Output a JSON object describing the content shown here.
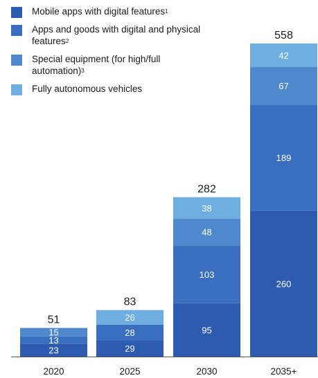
{
  "chart_data": {
    "type": "bar",
    "stacked": true,
    "categories": [
      "2020",
      "2025",
      "2030",
      "2035+"
    ],
    "totals": [
      51,
      83,
      282,
      558
    ],
    "series": [
      {
        "name": "Mobile apps with digital features",
        "note": "1",
        "color": "#2c5bb0",
        "values": [
          23,
          29,
          95,
          260
        ]
      },
      {
        "name": "Apps and goods with digital and physical features",
        "note": "2",
        "color": "#3a6fc0",
        "values": [
          13,
          28,
          103,
          189
        ]
      },
      {
        "name": "Special equipment (for high/full automation)",
        "note": "3",
        "color": "#4f89cc",
        "values": [
          15,
          0,
          48,
          67
        ]
      },
      {
        "name": "Fully autonomous vehicles",
        "color": "#6eaee0",
        "values": [
          0,
          26,
          38,
          42
        ]
      }
    ],
    "legend": [
      {
        "text": "Mobile apps with digital features",
        "sup": "1",
        "color": "#2c5bb0"
      },
      {
        "text": "Apps and goods with digital and physical features",
        "sup": "2",
        "color": "#3a6fc0"
      },
      {
        "text": "Special equipment (for high/full automation)",
        "sup": "3",
        "color": "#4f89cc"
      },
      {
        "text": "Fully autonomous vehicles",
        "sup": "",
        "color": "#6eaee0"
      }
    ]
  }
}
